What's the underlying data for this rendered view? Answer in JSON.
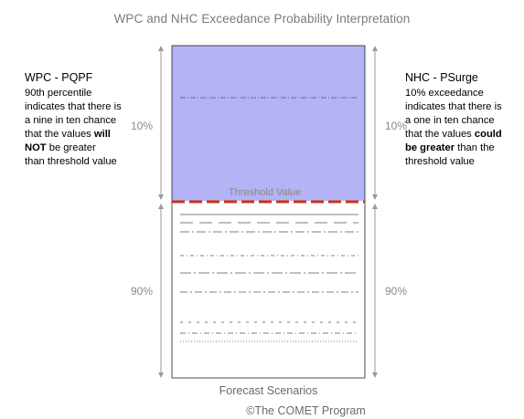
{
  "title": "WPC and NHC Exceedance Probability Interpretation",
  "left_panel": {
    "heading": "WPC - PQPF",
    "text_lines": [
      "90th percentile",
      "indicates that there is",
      "a nine in ten chance",
      "that the values "
    ],
    "bold_1": "will",
    "bold_2": "NOT",
    "after_bold": " be greater",
    "last_line": "than threshold value"
  },
  "right_panel": {
    "heading": "NHC - PSurge",
    "text_lines": [
      "10%  exceedance",
      "indicates that there is",
      "a one in ten chance",
      "that the values "
    ],
    "bold_1": "could",
    "bold_2": "be greater",
    "after_bold": " than the",
    "last_line": "threshold value"
  },
  "upper_percent": "10%",
  "lower_percent": "90%",
  "threshold_label": "Threshold Value",
  "x_label": "Forecast Scenarios",
  "copyright": "©The COMET Program",
  "colors": {
    "upper_fill": "#b3b3f5",
    "threshold_line": "#cc3311",
    "arrow": "#9a9a9a",
    "scenario_line": "#555555"
  }
}
